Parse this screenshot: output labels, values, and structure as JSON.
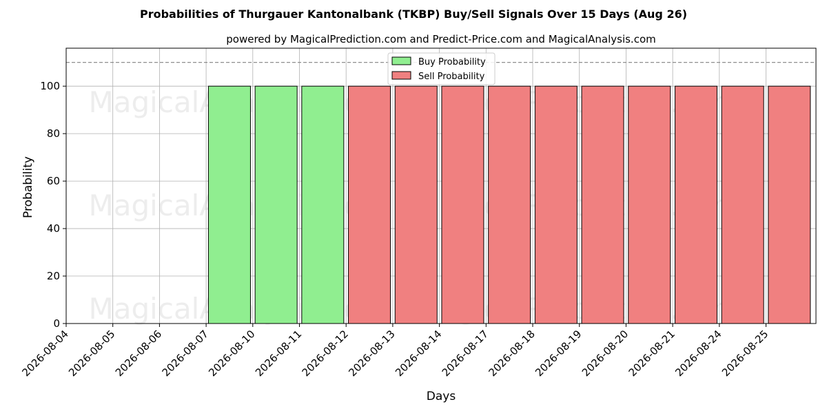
{
  "chart_data": {
    "type": "bar",
    "title": "Probabilities of Thurgauer Kantonalbank (TKBP) Buy/Sell Signals Over 15 Days (Aug 26)",
    "subtitle": "powered by MagicalPrediction.com and Predict-Price.com and MagicalAnalysis.com",
    "xlabel": "Days",
    "ylabel": "Probability",
    "ylim": [
      0,
      116
    ],
    "yticks": [
      0,
      20,
      40,
      60,
      80,
      100
    ],
    "threshold_line": 110,
    "categories": [
      "2026-08-04",
      "2026-08-05",
      "2026-08-06",
      "2026-08-07",
      "2026-08-10",
      "2026-08-11",
      "2026-08-12",
      "2026-08-13",
      "2026-08-14",
      "2026-08-17",
      "2026-08-18",
      "2026-08-19",
      "2026-08-20",
      "2026-08-21",
      "2026-08-24",
      "2026-08-25"
    ],
    "series": [
      {
        "name": "Buy Probability",
        "color": "#90ee90",
        "values": [
          null,
          null,
          null,
          100,
          100,
          100,
          null,
          null,
          null,
          null,
          null,
          null,
          null,
          null,
          null,
          null
        ]
      },
      {
        "name": "Sell Probability",
        "color": "#f08080",
        "values": [
          null,
          null,
          null,
          null,
          null,
          null,
          100,
          100,
          100,
          100,
          100,
          100,
          100,
          100,
          100,
          100
        ]
      }
    ],
    "grid": true,
    "legend_position": "top-center",
    "watermarks": [
      "MagicalAnalysis.com",
      "MagicalPrediction.com"
    ]
  }
}
